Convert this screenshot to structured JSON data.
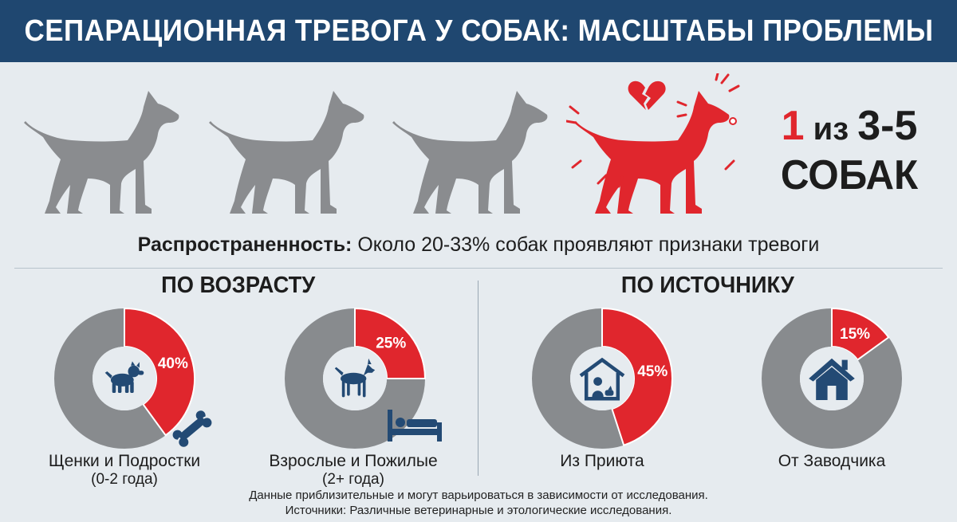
{
  "title": "СЕПАРАЦИОННАЯ ТРЕВОГА У СОБАК: МАСШТАБЫ ПРОБЛЕМЫ",
  "big_stat": {
    "part_red": "1",
    "part_mid": " из ",
    "part_range": "3-5",
    "line2": "СОБАК"
  },
  "prevalence": {
    "label": "Распространенность:",
    "text": " Около 20-33% собак проявляют признаки тревоги"
  },
  "sections": {
    "age_title": "ПО ВОЗРАСТУ",
    "source_title": "ПО ИСТОЧНИКУ"
  },
  "colors": {
    "accent_red": "#e0262d",
    "gray": "#888b8e",
    "navy": "#1f4770",
    "icon_blue": "#234a74"
  },
  "charts": [
    {
      "label_pct": "40%",
      "value": 40,
      "caption": "Щенки и Подростки",
      "sub": "(0-2 года)",
      "icon": "puppy-icon",
      "extra_icon": "bone-icon"
    },
    {
      "label_pct": "25%",
      "value": 25,
      "caption": "Взрослые и Пожилые",
      "sub": "(2+ года)",
      "icon": "adult-dog-icon",
      "extra_icon": "bed-icon"
    },
    {
      "label_pct": "45%",
      "value": 45,
      "caption": "Из Приюта",
      "sub": "",
      "icon": "shelter-icon",
      "extra_icon": ""
    },
    {
      "label_pct": "15%",
      "value": 15,
      "caption": "От Заводчика",
      "sub": "",
      "icon": "house-icon",
      "extra_icon": ""
    }
  ],
  "footer": {
    "line1": "Данные приблизительные и могут варьироваться в зависимости от исследования.",
    "line2": "Источники: Различные ветеринарные и этологические исследования."
  }
}
